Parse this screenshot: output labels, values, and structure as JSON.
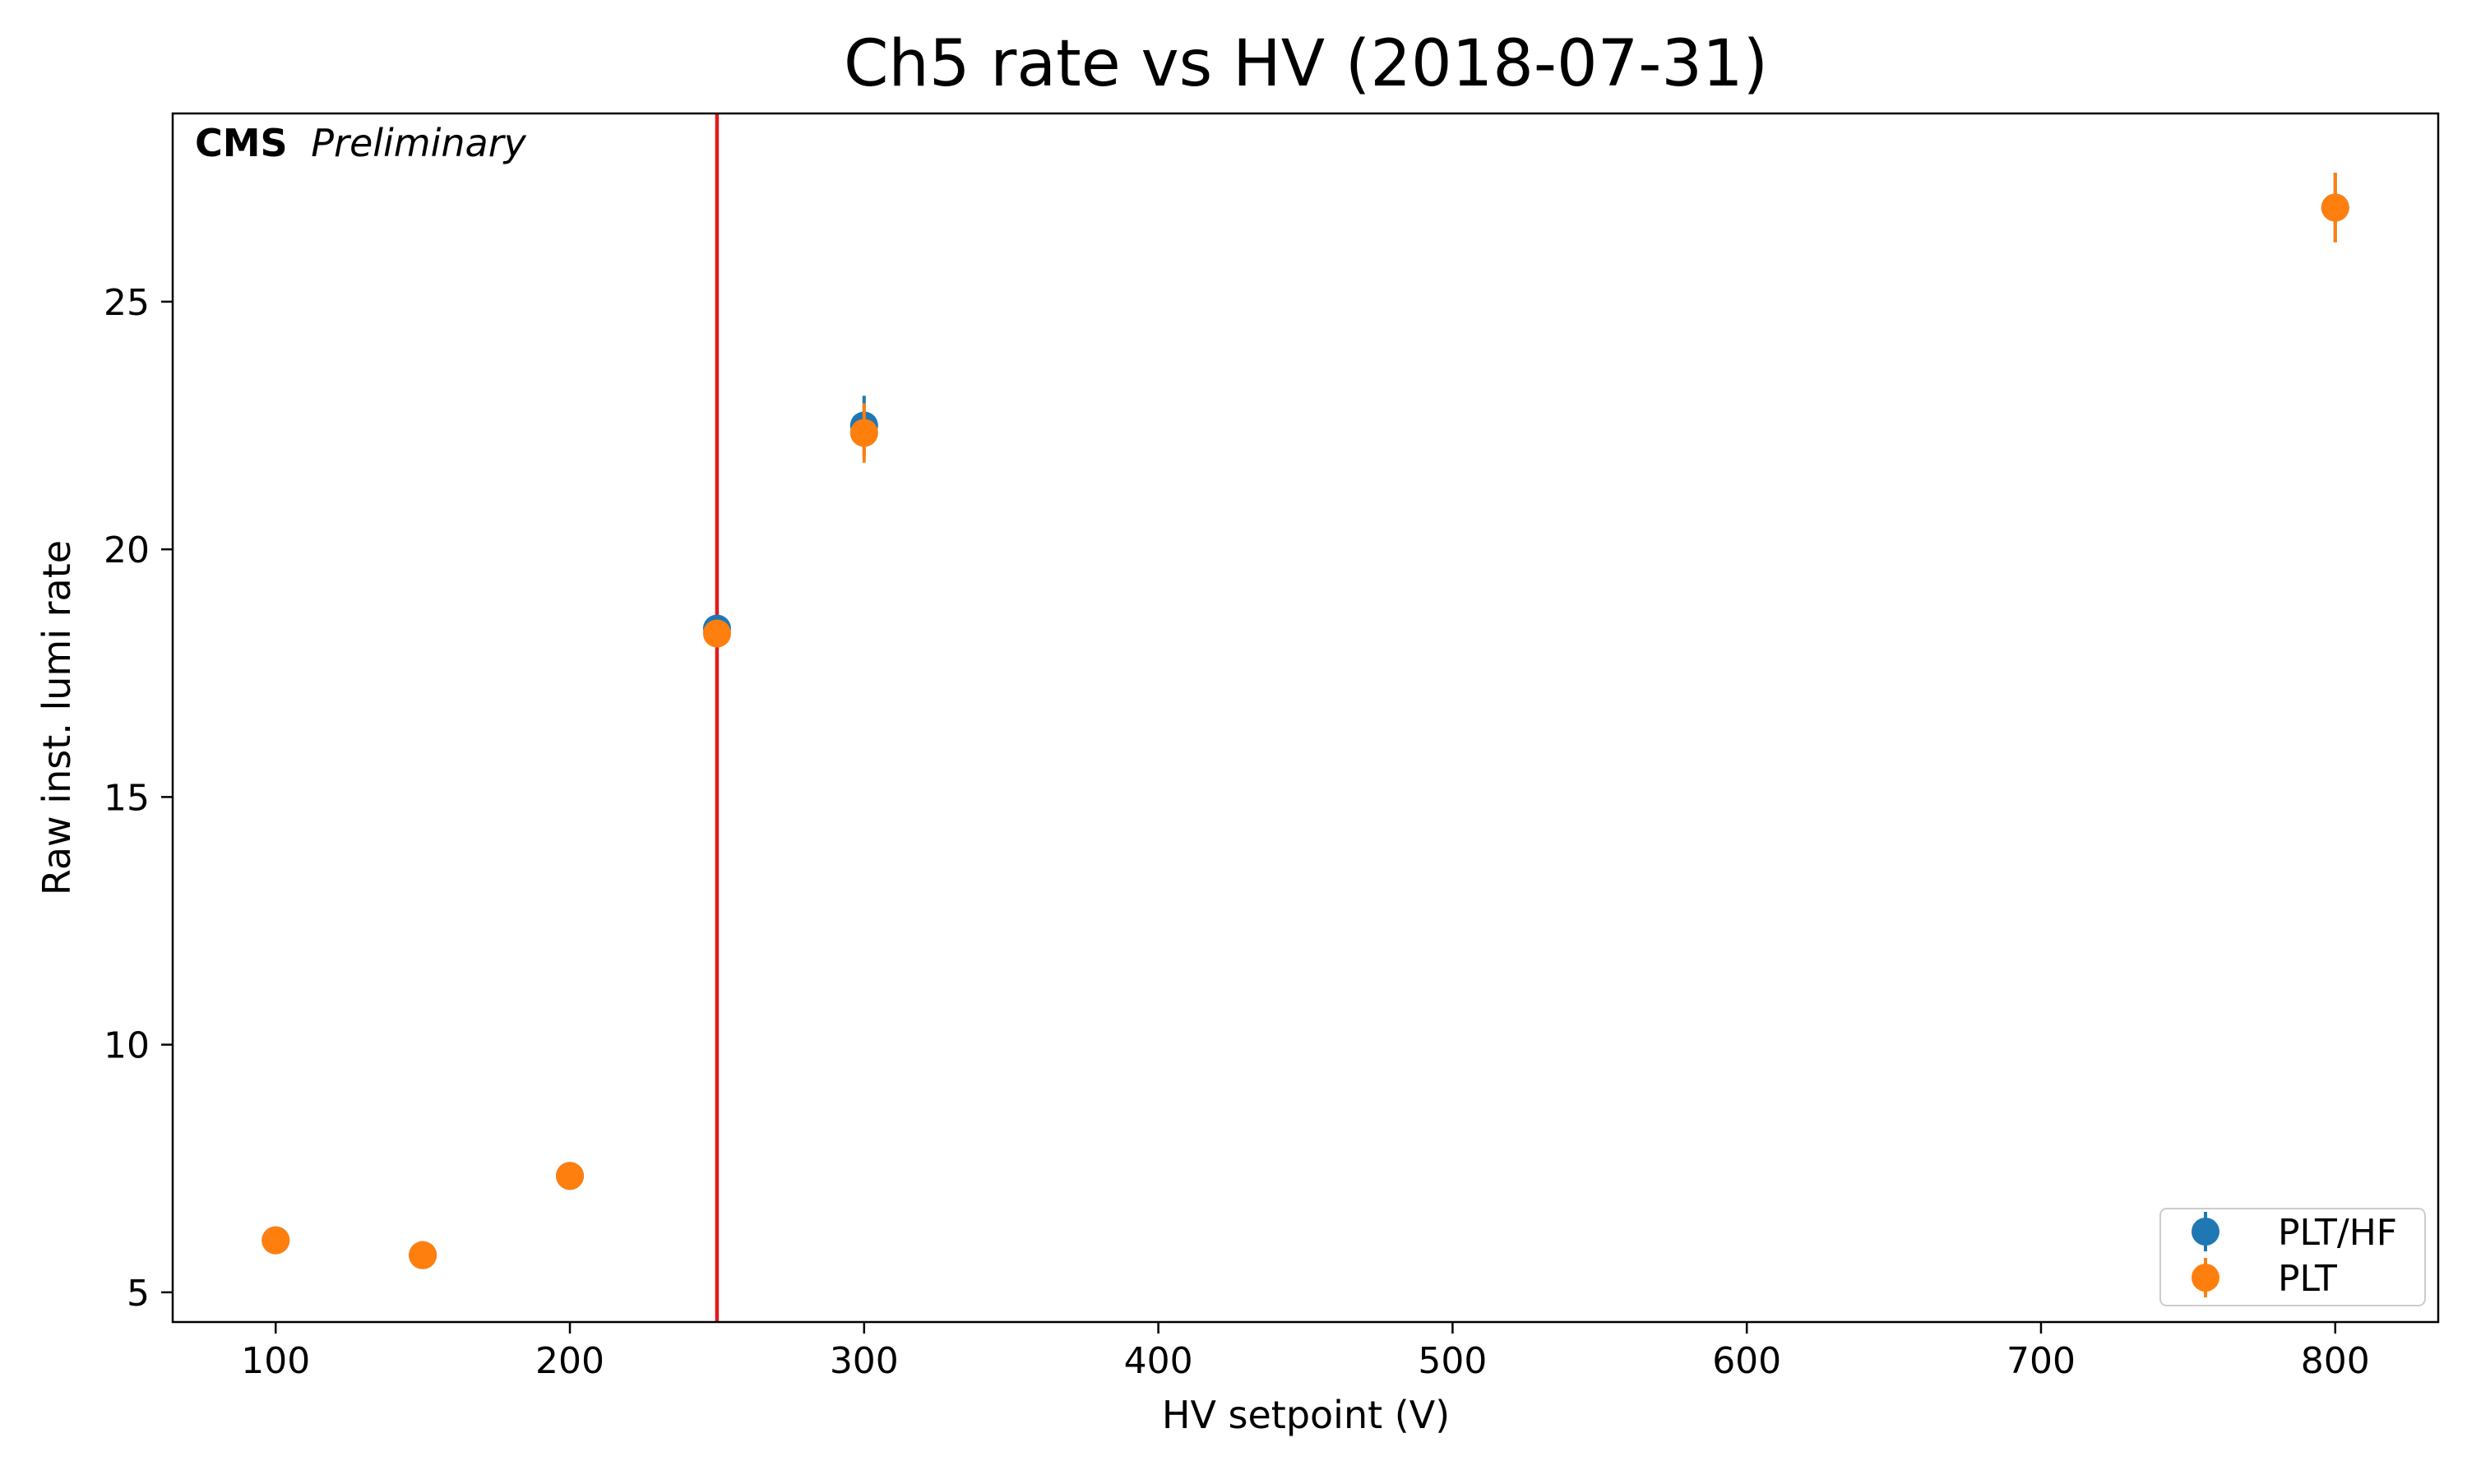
{
  "chart_data": {
    "type": "scatter",
    "title": "Ch5 rate vs HV (2018-07-31)",
    "xlabel": "HV setpoint (V)",
    "ylabel": "Raw inst. lumi rate",
    "xlim": [
      65,
      835
    ],
    "ylim": [
      4.4,
      28.8
    ],
    "xticks": [
      100,
      200,
      300,
      400,
      500,
      600,
      700,
      800
    ],
    "yticks": [
      5,
      10,
      15,
      20,
      25
    ],
    "grid": false,
    "legend_position": "bottom-right",
    "annotation": {
      "bold": "CMS",
      "italic": "Preliminary"
    },
    "vline": {
      "x": 250,
      "color": "#e41a1c"
    },
    "series": [
      {
        "name": "PLT/HF",
        "color": "#1f77b4",
        "x": [
          100,
          150,
          200,
          250,
          300,
          800
        ],
        "y": [
          6.05,
          5.75,
          7.35,
          18.4,
          22.5,
          26.9
        ],
        "yerr": [
          0.15,
          0.15,
          0.15,
          0.2,
          0.6,
          0.7
        ]
      },
      {
        "name": "PLT",
        "color": "#ff7f0e",
        "x": [
          100,
          150,
          200,
          250,
          300,
          800
        ],
        "y": [
          6.05,
          5.75,
          7.35,
          18.3,
          22.35,
          26.9
        ],
        "yerr": [
          0.15,
          0.15,
          0.15,
          0.2,
          0.6,
          0.7
        ]
      }
    ]
  }
}
